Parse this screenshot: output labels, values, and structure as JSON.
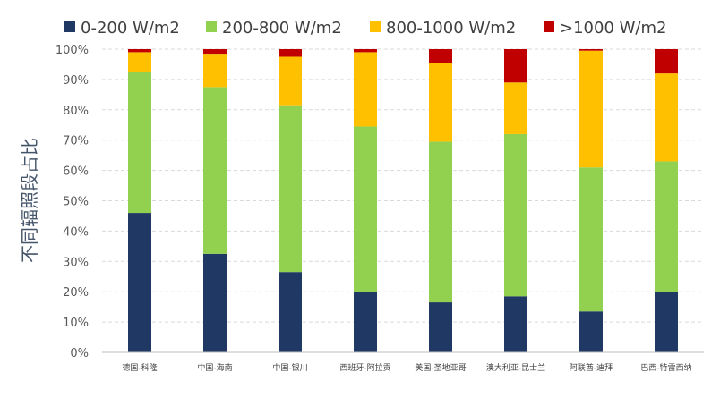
{
  "chart_data": {
    "type": "bar",
    "stacked": true,
    "ylabel": "不同辐照段占比",
    "ylim": [
      0,
      100
    ],
    "yticks": [
      "0%",
      "10%",
      "20%",
      "30%",
      "40%",
      "50%",
      "60%",
      "70%",
      "80%",
      "90%",
      "100%"
    ],
    "grid": true,
    "legend_position": "top",
    "categories": [
      "德国-科隆",
      "中国-海南",
      "中国-银川",
      "西班牙-阿拉贡",
      "美国-圣地亚哥",
      "澳大利亚-昆士兰",
      "阿联酋-迪拜",
      "巴西-特雷西纳"
    ],
    "series": [
      {
        "name": "0-200 W/m2",
        "color": "#1f3864",
        "values": [
          46,
          32.5,
          26.5,
          20,
          16.5,
          18.5,
          13.5,
          20
        ]
      },
      {
        "name": "200-800 W/m2",
        "color": "#92d050",
        "values": [
          46.5,
          55,
          55,
          54.5,
          53,
          53.5,
          47.5,
          43
        ]
      },
      {
        "name": "800-1000 W/m2",
        "color": "#ffc000",
        "values": [
          6.5,
          11,
          16,
          24.5,
          26,
          17,
          38.5,
          29
        ]
      },
      {
        "name": ">1000 W/m2",
        "color": "#c00000",
        "values": [
          1,
          1.5,
          2.5,
          1,
          4.5,
          11,
          0.5,
          8
        ]
      }
    ]
  }
}
